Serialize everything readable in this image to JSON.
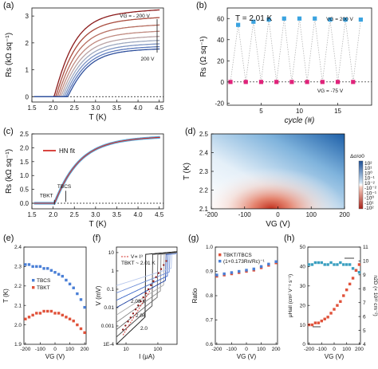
{
  "chart_data": [
    {
      "panel": "(a)",
      "type": "line",
      "xlabel": "T (K)",
      "ylabel": "Rs (kΩ sq⁻¹)",
      "xlim": [
        1.5,
        4.6
      ],
      "ylim": [
        -0.2,
        3.3
      ],
      "xticks": [
        "1.5",
        "2.0",
        "2.5",
        "3.0",
        "3.5",
        "4.0",
        "4.5"
      ],
      "yticks": [
        "0",
        "1",
        "2",
        "3"
      ],
      "annotations": [
        "VG = - 200 V",
        "200 V"
      ],
      "series": [
        {
          "VG": -200,
          "color": "#8b1a1a",
          "rn": 3.05
        },
        {
          "VG": -150,
          "color": "#a84a3c",
          "rn": 2.78
        },
        {
          "VG": -100,
          "color": "#b66d5f",
          "rn": 2.52
        },
        {
          "VG": -50,
          "color": "#c08a80",
          "rn": 2.3
        },
        {
          "VG": 0,
          "color": "#b9a3a5",
          "rn": 2.12
        },
        {
          "VG": 50,
          "color": "#9ea9c0",
          "rn": 1.98
        },
        {
          "VG": 100,
          "color": "#7d94c3",
          "rn": 1.86
        },
        {
          "VG": 150,
          "color": "#5a79bd",
          "rn": 1.76
        },
        {
          "VG": 200,
          "color": "#2e4f9c",
          "rn": 1.68
        }
      ],
      "tc_mid": 2.35
    },
    {
      "panel": "(b)",
      "type": "scatter",
      "title": "T = 2.01 K",
      "xlabel": "cycle (#)",
      "ylabel": "Rs (Ω sq⁻¹)",
      "xlim": [
        1,
        19
      ],
      "ylim": [
        -22,
        70
      ],
      "xticks": [
        "5",
        "10",
        "15"
      ],
      "yticks": [
        "-20",
        "0",
        "20",
        "40",
        "60"
      ],
      "series": [
        {
          "name": "VG = 200 V",
          "color": "#3aa3e0",
          "x": [
            2,
            4,
            6,
            8,
            10,
            12,
            14,
            16,
            18
          ],
          "y": [
            54,
            57,
            59,
            60,
            60,
            60,
            59,
            59,
            59
          ]
        },
        {
          "name": "VG = -75 V",
          "color": "#e0237a",
          "x": [
            1,
            3,
            5,
            7,
            9,
            11,
            13,
            15,
            17
          ],
          "y": [
            0,
            0,
            0,
            0,
            0,
            0,
            0,
            0,
            0
          ]
        }
      ]
    },
    {
      "panel": "(c)",
      "type": "line",
      "xlabel": "T (K)",
      "ylabel": "Rs (kΩ sq⁻¹)",
      "xlim": [
        1.5,
        4.6
      ],
      "ylim": [
        -0.2,
        2.5
      ],
      "xticks": [
        "1.5",
        "2.0",
        "2.5",
        "3.0",
        "3.5",
        "4.0",
        "4.5"
      ],
      "yticks": [
        "0.0",
        "0.5",
        "1.0",
        "1.5",
        "2.0",
        "2.5"
      ],
      "legend": [
        "HN fit"
      ],
      "labels": [
        "TBCS",
        "TBKT"
      ],
      "tbcs": 2.3,
      "tbkt": 2.03
    },
    {
      "panel": "(d)",
      "type": "heatmap",
      "xlabel": "VG (V)",
      "ylabel": "T (K)",
      "xlim": [
        -200,
        200
      ],
      "ylim": [
        2.1,
        2.5
      ],
      "xticks": [
        "-200",
        "-100",
        "0",
        "100",
        "200"
      ],
      "yticks": [
        "2.1",
        "2.2",
        "2.3",
        "2.4",
        "2.5"
      ],
      "colorbar_label": "Δσ/σ0",
      "colorbar_ticks": [
        "10²",
        "10¹",
        "10⁰",
        "10⁻¹",
        "10⁻²",
        "-10⁻²",
        "-10⁻¹",
        "-10⁰",
        "-10¹",
        "-10²"
      ]
    },
    {
      "panel": "(e)",
      "type": "scatter",
      "xlabel": "VG (V)",
      "ylabel": "T (K)",
      "xlim": [
        -210,
        210
      ],
      "ylim": [
        1.9,
        2.4
      ],
      "xticks": [
        "-200",
        "-100",
        "0",
        "100",
        "200"
      ],
      "yticks": [
        "1.9",
        "2.0",
        "2.1",
        "2.2",
        "2.3",
        "2.4"
      ],
      "series": [
        {
          "name": "TBCS",
          "color": "#4a7fd6",
          "x": [
            -200,
            -175,
            -150,
            -125,
            -100,
            -75,
            -50,
            -25,
            0,
            25,
            50,
            75,
            100,
            125,
            150,
            175,
            200
          ],
          "y": [
            2.31,
            2.31,
            2.3,
            2.3,
            2.3,
            2.29,
            2.29,
            2.28,
            2.27,
            2.26,
            2.25,
            2.23,
            2.21,
            2.19,
            2.16,
            2.13,
            2.09
          ]
        },
        {
          "name": "TBKT",
          "color": "#e0523a",
          "x": [
            -200,
            -175,
            -150,
            -125,
            -100,
            -75,
            -50,
            -25,
            0,
            25,
            50,
            75,
            100,
            125,
            150,
            175,
            200
          ],
          "y": [
            2.03,
            2.04,
            2.05,
            2.06,
            2.06,
            2.07,
            2.07,
            2.07,
            2.06,
            2.06,
            2.05,
            2.04,
            2.03,
            2.02,
            2.0,
            1.98,
            1.96
          ]
        }
      ]
    },
    {
      "panel": "(f)",
      "type": "line",
      "xlabel": "I (μA)",
      "ylabel": "V (mV)",
      "xscale": "log",
      "yscale": "log",
      "xticks": [
        "10",
        "100"
      ],
      "yticks": [
        "1E-4",
        "0.001",
        "0.01",
        "0.1",
        "1",
        "10"
      ],
      "legend": [
        "V∝ I³",
        "TBKT ~ 2.01 K"
      ],
      "curve_labels": [
        "2.08 K",
        "2.04",
        "2.0"
      ]
    },
    {
      "panel": "(g)",
      "type": "scatter",
      "xlabel": "VG (V)",
      "ylabel": "Ratio",
      "xlim": [
        -210,
        210
      ],
      "ylim": [
        0.6,
        1.0
      ],
      "xticks": [
        "-200",
        "-100",
        "0",
        "100",
        "200"
      ],
      "yticks": [
        "0.6",
        "0.7",
        "0.8",
        "0.9",
        "1.0"
      ],
      "series": [
        {
          "name": "TBKT/TBCS",
          "color": "#e0523a",
          "x": [
            -200,
            -150,
            -100,
            -50,
            0,
            50,
            100,
            150,
            200
          ],
          "y": [
            0.88,
            0.885,
            0.89,
            0.895,
            0.9,
            0.905,
            0.915,
            0.925,
            0.935
          ]
        },
        {
          "name": "(1+0.173Rn/Rc)⁻¹",
          "color": "#4a7fd6",
          "x": [
            -200,
            -150,
            -100,
            -50,
            0,
            50,
            100,
            150,
            200
          ],
          "y": [
            0.885,
            0.89,
            0.895,
            0.9,
            0.905,
            0.91,
            0.92,
            0.93,
            0.94
          ]
        }
      ]
    },
    {
      "panel": "(h)",
      "type": "scatter",
      "xlabel": "VG (V)",
      "ylabel": "μHall (cm² V⁻¹ s⁻¹)",
      "ylabel_right": "n2D (× 10¹³ cm⁻²)",
      "xlim": [
        -210,
        210
      ],
      "ylim": [
        0,
        50
      ],
      "ylim_right": [
        4,
        11
      ],
      "xticks": [
        "-200",
        "-100",
        "0",
        "100",
        "200"
      ],
      "yticks": [
        "0",
        "10",
        "20",
        "30",
        "40",
        "50"
      ],
      "yticks_right": [
        "4",
        "5",
        "6",
        "7",
        "8",
        "9",
        "10",
        "11"
      ],
      "series": [
        {
          "name": "n2D",
          "color": "#3a9fc0",
          "x": [
            -200,
            -175,
            -150,
            -125,
            -100,
            -75,
            -50,
            -25,
            0,
            25,
            50,
            75,
            100,
            125,
            150,
            175,
            200
          ],
          "y": [
            41,
            41,
            42,
            42,
            42,
            41,
            41,
            42,
            41,
            41,
            42,
            41,
            41,
            41,
            39,
            38,
            37
          ]
        },
        {
          "name": "μHall",
          "color": "#e0523a",
          "x": [
            -200,
            -175,
            -150,
            -125,
            -100,
            -75,
            -50,
            -25,
            0,
            25,
            50,
            75,
            100,
            125,
            150,
            175,
            200
          ],
          "y": [
            10,
            10,
            11,
            11,
            12,
            13,
            14,
            16,
            18,
            20,
            22,
            25,
            28,
            31,
            34,
            38,
            41
          ]
        }
      ]
    }
  ],
  "labels": {
    "a": "(a)",
    "b": "(b)",
    "c": "(c)",
    "d": "(d)",
    "e": "(e)",
    "f": "(f)",
    "g": "(g)",
    "h": "(h)"
  }
}
